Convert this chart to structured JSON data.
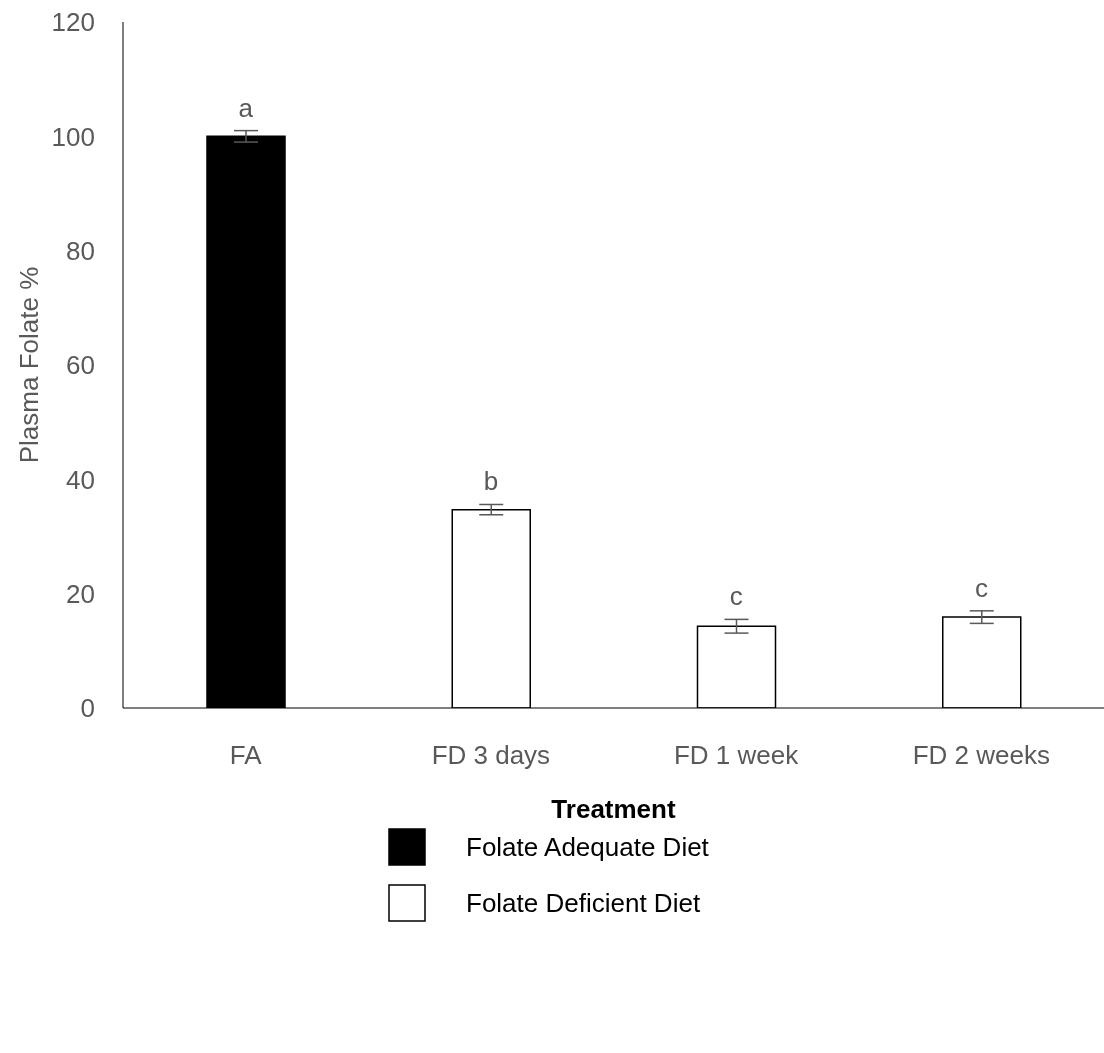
{
  "chart_data": {
    "type": "bar",
    "xlabel": "Treatment",
    "ylabel": "Plasma Folate %",
    "categories": [
      "FA",
      "FD 3 days",
      "FD 1 week",
      "FD 2 weeks"
    ],
    "series": [
      {
        "name": "Folate Adequate Diet",
        "color": "#000000",
        "values": [
          100,
          null,
          null,
          null
        ],
        "errors": [
          1,
          null,
          null,
          null
        ]
      },
      {
        "name": "Folate Deficient Diet",
        "color": "#ffffff",
        "values": [
          null,
          34.7,
          14.3,
          15.9
        ],
        "errors": [
          null,
          0.9,
          1.2,
          1.1
        ]
      }
    ],
    "stacked": true,
    "ylim": [
      0,
      120
    ],
    "yticks": [
      0,
      20,
      40,
      60,
      80,
      100,
      120
    ],
    "grid": false,
    "legend": "bottom",
    "annotations": [
      {
        "text": "a",
        "x": "FA",
        "y": 101
      },
      {
        "text": "b",
        "x": "FD 3 days",
        "y": 35.6
      },
      {
        "text": "c",
        "x": "FD 1 week",
        "y": 15.5
      },
      {
        "text": "c",
        "x": "FD 2 weeks",
        "y": 17
      }
    ]
  }
}
